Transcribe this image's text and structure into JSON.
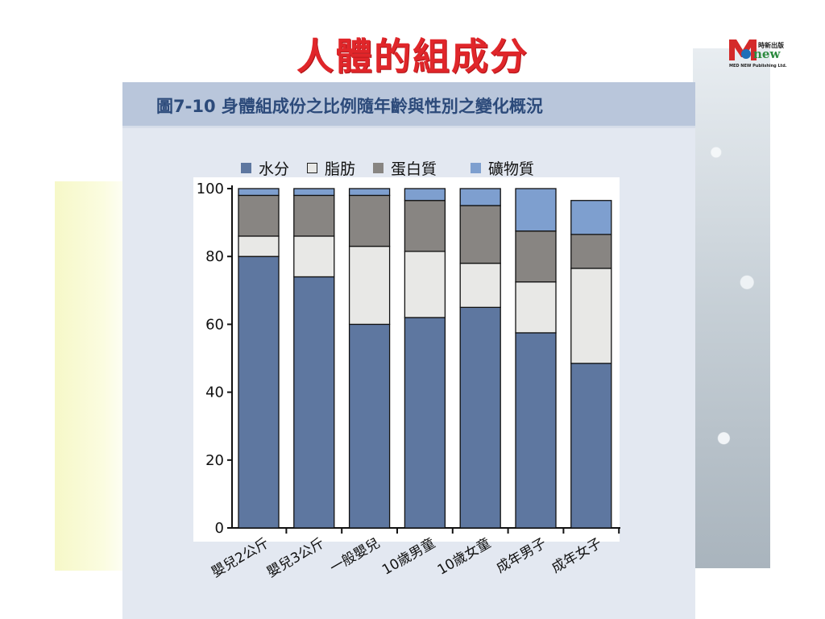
{
  "slide_title": "人體的組成分",
  "logo": {
    "chinese": "時新出版",
    "word": "new",
    "subtitle": "MED NEW Publishing Ltd."
  },
  "figure_title": "圖7-10  身體組成份之比例隨年齡與性別之變化概況",
  "colors": {
    "title": "#e0262a",
    "water": "#5e77a0",
    "fat": "#e8e8e6",
    "protein": "#888582",
    "mineral": "#7e9fcf"
  },
  "chart_data": {
    "type": "bar",
    "stacked": true,
    "title": "",
    "xlabel": "",
    "ylabel": "",
    "ylim": [
      0,
      100
    ],
    "yticks": [
      0,
      20,
      40,
      60,
      80,
      100
    ],
    "categories": [
      "嬰兒2公斤",
      "嬰兒3公斤",
      "一般嬰兒",
      "10歲男童",
      "10歲女童",
      "成年男子",
      "成年女子"
    ],
    "series": [
      {
        "name": "水分",
        "color": "#5e77a0",
        "values": [
          80,
          74,
          60,
          62,
          65,
          57.5,
          48.5
        ]
      },
      {
        "name": "脂肪",
        "color": "#e8e8e6",
        "values": [
          6,
          12,
          23,
          19.5,
          13,
          15,
          28
        ]
      },
      {
        "name": "蛋白質",
        "color": "#888582",
        "values": [
          12,
          12,
          15,
          15,
          17,
          15,
          10
        ]
      },
      {
        "name": "礦物質",
        "color": "#7e9fcf",
        "values": [
          2,
          2,
          2,
          3.5,
          5,
          12.5,
          10
        ]
      }
    ],
    "legend_position": "top"
  }
}
